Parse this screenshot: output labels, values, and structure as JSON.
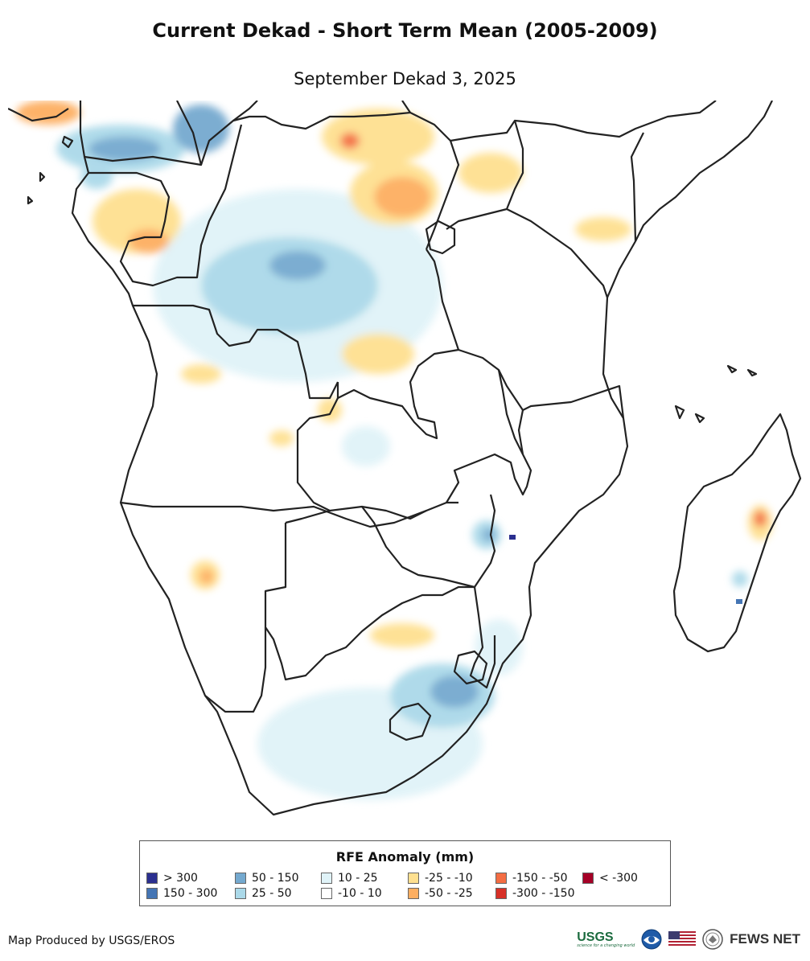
{
  "header": {
    "title": "Current Dekad - Short Term Mean (2005-2009)",
    "subtitle": "September Dekad 3, 2025"
  },
  "legend": {
    "title": "RFE Anomaly (mm)",
    "items": [
      {
        "label": "> 300",
        "color": "#2b2f8f"
      },
      {
        "label": "150 - 300",
        "color": "#4575b4"
      },
      {
        "label": "50 - 150",
        "color": "#74a9cf"
      },
      {
        "label": "25 - 50",
        "color": "#abd9e9"
      },
      {
        "label": "10 - 25",
        "color": "#e0f3f8"
      },
      {
        "label": "-10 - 10",
        "color": "#ffffff"
      },
      {
        "label": "-25 - -10",
        "color": "#fee090"
      },
      {
        "label": "-50 - -25",
        "color": "#fdae61"
      },
      {
        "label": "-150 - -50",
        "color": "#f46d43"
      },
      {
        "label": "-300 - -150",
        "color": "#d73027"
      },
      {
        "label": "< -300",
        "color": "#a50026"
      }
    ]
  },
  "footer": {
    "credit": "Map Produced by USGS/EROS",
    "usgs_logo": "USGS",
    "usgs_tagline": "science for a changing world",
    "fews_logo": "FEWS NET",
    "icons": [
      "noaa-logo-icon",
      "us-flag-icon",
      "state-department-seal-icon"
    ]
  }
}
